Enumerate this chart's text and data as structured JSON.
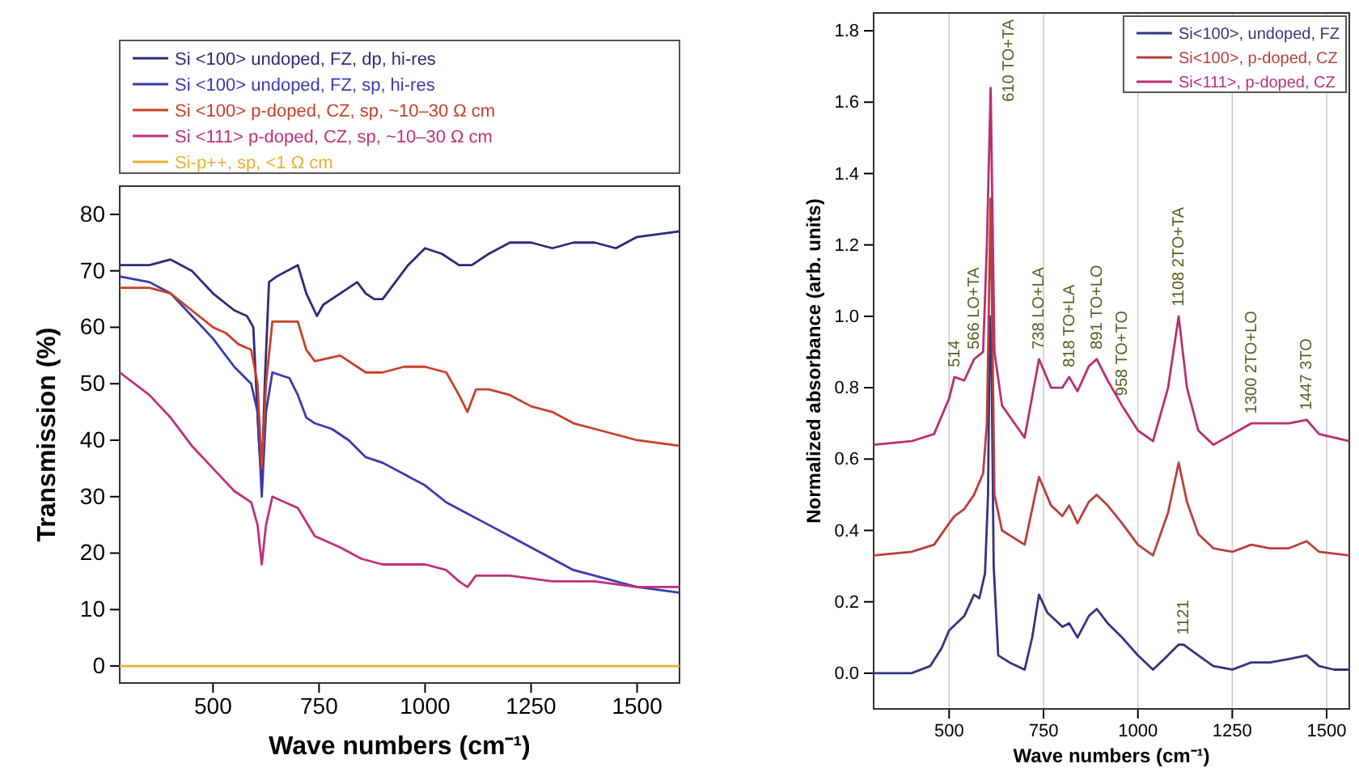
{
  "chart_data": [
    {
      "type": "line",
      "xlabel": "Wave numbers (cm⁻¹)",
      "ylabel": "Transmission (%)",
      "xlim": [
        280,
        1600
      ],
      "ylim": [
        -3,
        85
      ],
      "xticks": [
        500,
        750,
        1000,
        1250,
        1500
      ],
      "yticks": [
        0,
        10,
        20,
        30,
        40,
        50,
        60,
        70,
        80
      ],
      "grid": false,
      "legend": "top",
      "series": [
        {
          "name": "Si <100> undoped, FZ, dp, hi-res",
          "color": "#2b2b78",
          "x": [
            280,
            350,
            400,
            450,
            500,
            550,
            580,
            595,
            608,
            615,
            622,
            632,
            650,
            700,
            720,
            745,
            760,
            800,
            820,
            840,
            860,
            880,
            900,
            930,
            960,
            1000,
            1040,
            1080,
            1110,
            1150,
            1200,
            1250,
            1300,
            1350,
            1400,
            1450,
            1500,
            1600
          ],
          "values": [
            71,
            71,
            72,
            70,
            66,
            63,
            62,
            60,
            40,
            33,
            50,
            68,
            69,
            71,
            66,
            62,
            64,
            66,
            67,
            68,
            66,
            65,
            65,
            68,
            71,
            74,
            73,
            71,
            71,
            73,
            75,
            75,
            74,
            75,
            75,
            74,
            76,
            77
          ]
        },
        {
          "name": "Si <100> undoped, FZ, sp, hi-res",
          "color": "#3a3ab0",
          "x": [
            280,
            350,
            400,
            450,
            500,
            550,
            590,
            605,
            615,
            625,
            640,
            680,
            700,
            720,
            740,
            780,
            820,
            860,
            900,
            950,
            1000,
            1050,
            1100,
            1150,
            1200,
            1250,
            1300,
            1350,
            1400,
            1450,
            1500,
            1600
          ],
          "values": [
            69,
            68,
            66,
            62,
            58,
            53,
            50,
            45,
            30,
            45,
            52,
            51,
            48,
            44,
            43,
            42,
            40,
            37,
            36,
            34,
            32,
            29,
            27,
            25,
            23,
            21,
            19,
            17,
            16,
            15,
            14,
            13
          ]
        },
        {
          "name": "Si <100> p-doped, CZ, sp,  ~10–30 Ω cm",
          "color": "#c8402a",
          "x": [
            280,
            350,
            400,
            450,
            500,
            530,
            560,
            590,
            605,
            615,
            625,
            640,
            700,
            720,
            740,
            800,
            820,
            860,
            900,
            950,
            1000,
            1050,
            1080,
            1100,
            1120,
            1150,
            1200,
            1250,
            1300,
            1350,
            1400,
            1450,
            1500,
            1600
          ],
          "values": [
            67,
            67,
            66,
            63,
            60,
            59,
            57,
            56,
            50,
            35,
            50,
            61,
            61,
            56,
            54,
            55,
            54,
            52,
            52,
            53,
            53,
            52,
            48,
            45,
            49,
            49,
            48,
            46,
            45,
            43,
            42,
            41,
            40,
            39
          ]
        },
        {
          "name": "Si <111> p-doped, CZ, sp,  ~10–30 Ω cm",
          "color": "#c0307a",
          "x": [
            280,
            350,
            400,
            450,
            500,
            550,
            590,
            605,
            615,
            625,
            640,
            700,
            740,
            800,
            850,
            900,
            950,
            1000,
            1050,
            1080,
            1100,
            1120,
            1200,
            1300,
            1400,
            1500,
            1600
          ],
          "values": [
            52,
            48,
            44,
            39,
            35,
            31,
            29,
            25,
            18,
            25,
            30,
            28,
            23,
            21,
            19,
            18,
            18,
            18,
            17,
            15,
            14,
            16,
            16,
            15,
            15,
            14,
            14
          ]
        },
        {
          "name": "Si-p++, sp, <1 Ω cm",
          "color": "#e8b030",
          "x": [
            280,
            1600
          ],
          "values": [
            0,
            0
          ]
        }
      ]
    },
    {
      "type": "line",
      "xlabel": "Wave numbers (cm⁻¹)",
      "ylabel": "Normalized absorbance (arb. units)",
      "xlim": [
        300,
        1560
      ],
      "ylim": [
        -0.1,
        1.85
      ],
      "xticks": [
        500,
        750,
        1000,
        1250,
        1500
      ],
      "yticks": [
        {
          "value": 0,
          "label": "0.0"
        },
        0.2,
        0.4,
        0.6,
        0.8,
        {
          "value": 1,
          "label": "1.0"
        },
        1.2,
        1.4,
        1.6,
        1.8
      ],
      "grid": "x",
      "legend": "top right",
      "annotations": [
        {
          "text": "514",
          "x": 514,
          "y": 0.83
        },
        {
          "text": "566 LO+TA",
          "x": 566,
          "y": 0.88
        },
        {
          "text": "610 TO+TA",
          "x": 610,
          "y": 1.64
        },
        {
          "text": "738 LO+LA",
          "x": 738,
          "y": 0.88
        },
        {
          "text": "818 TO+LA",
          "x": 818,
          "y": 0.83
        },
        {
          "text": "891 TO+LO",
          "x": 891,
          "y": 0.88
        },
        {
          "text": "958 TO+TO",
          "x": 958,
          "y": 0.75
        },
        {
          "text": "1108 2TO+TA",
          "x": 1108,
          "y": 1.0
        },
        {
          "text": "1300 2TO+LO",
          "x": 1300,
          "y": 0.7
        },
        {
          "text": "1447 3TO",
          "x": 1447,
          "y": 0.71
        },
        {
          "text": "1121",
          "x": 1121,
          "y": 0.08
        }
      ],
      "series": [
        {
          "name": "Si<100>, undoped, FZ",
          "color": "#34347e",
          "x": [
            300,
            400,
            450,
            480,
            500,
            540,
            566,
            580,
            595,
            603,
            608,
            612,
            618,
            630,
            660,
            700,
            720,
            738,
            760,
            800,
            818,
            840,
            870,
            891,
            920,
            958,
            1000,
            1040,
            1070,
            1108,
            1121,
            1160,
            1200,
            1250,
            1300,
            1350,
            1400,
            1447,
            1480,
            1520,
            1560
          ],
          "values": [
            0,
            0,
            0.02,
            0.07,
            0.12,
            0.16,
            0.22,
            0.21,
            0.28,
            0.5,
            1.0,
            0.9,
            0.3,
            0.05,
            0.03,
            0.01,
            0.1,
            0.22,
            0.17,
            0.13,
            0.14,
            0.1,
            0.16,
            0.18,
            0.14,
            0.1,
            0.05,
            0.01,
            0.04,
            0.08,
            0.08,
            0.05,
            0.02,
            0.01,
            0.03,
            0.03,
            0.04,
            0.05,
            0.02,
            0.01,
            0.01
          ]
        },
        {
          "name": "Si<100>, p-doped, CZ",
          "color": "#b8403c",
          "x": [
            300,
            400,
            460,
            500,
            514,
            540,
            566,
            590,
            600,
            610,
            620,
            640,
            700,
            738,
            770,
            800,
            818,
            840,
            870,
            891,
            920,
            958,
            1000,
            1040,
            1080,
            1108,
            1130,
            1160,
            1200,
            1250,
            1300,
            1350,
            1400,
            1447,
            1480,
            1560
          ],
          "values": [
            0.33,
            0.34,
            0.36,
            0.42,
            0.44,
            0.46,
            0.5,
            0.56,
            0.7,
            1.33,
            0.5,
            0.4,
            0.36,
            0.55,
            0.47,
            0.44,
            0.47,
            0.42,
            0.48,
            0.5,
            0.47,
            0.42,
            0.36,
            0.33,
            0.45,
            0.59,
            0.48,
            0.39,
            0.35,
            0.34,
            0.36,
            0.35,
            0.35,
            0.37,
            0.34,
            0.33
          ]
        },
        {
          "name": "Si<111>, p-doped, CZ",
          "color": "#b8306e",
          "x": [
            300,
            400,
            460,
            500,
            514,
            540,
            566,
            590,
            600,
            610,
            620,
            640,
            700,
            738,
            770,
            800,
            818,
            840,
            870,
            891,
            920,
            958,
            1000,
            1040,
            1080,
            1108,
            1130,
            1160,
            1200,
            1250,
            1300,
            1350,
            1400,
            1447,
            1480,
            1560
          ],
          "values": [
            0.64,
            0.65,
            0.67,
            0.77,
            0.83,
            0.82,
            0.88,
            0.9,
            1.2,
            1.64,
            0.9,
            0.75,
            0.66,
            0.88,
            0.8,
            0.8,
            0.83,
            0.79,
            0.86,
            0.88,
            0.82,
            0.75,
            0.68,
            0.65,
            0.8,
            1.0,
            0.8,
            0.68,
            0.64,
            0.67,
            0.7,
            0.7,
            0.7,
            0.71,
            0.67,
            0.65
          ]
        }
      ]
    }
  ]
}
